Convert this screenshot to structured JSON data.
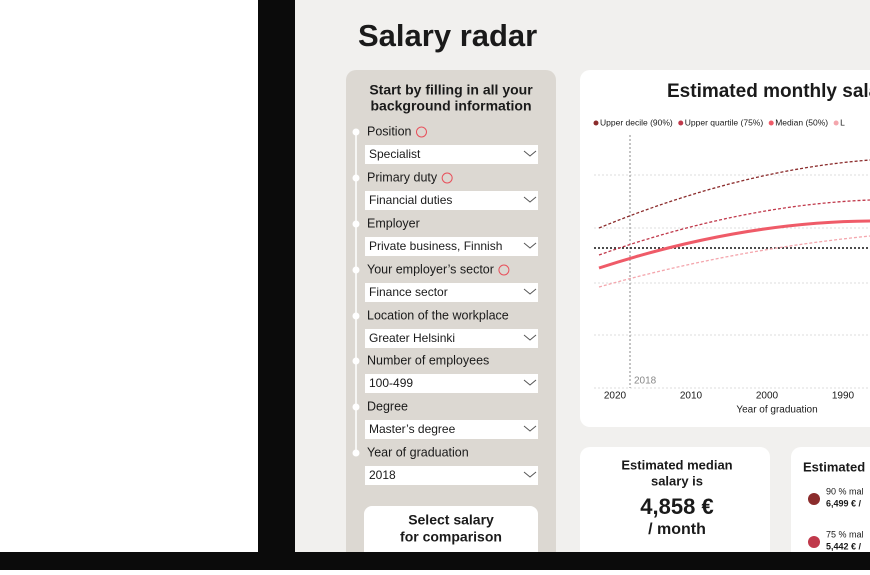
{
  "header": {
    "title": "Salary radar"
  },
  "form": {
    "heading": [
      "Start by filling in all your",
      "background information"
    ],
    "fields": [
      {
        "label": "Position",
        "value": "Specialist"
      },
      {
        "label": "Primary duty",
        "value": "Financial duties"
      },
      {
        "label": "Employer",
        "value": "Private business, Finnish"
      },
      {
        "label": "Your employer’s sector",
        "value": "Finance sector"
      },
      {
        "label": "Location of the workplace",
        "value": "Greater Helsinki"
      },
      {
        "label": "Number of employees",
        "value": "100-499"
      },
      {
        "label": "Degree",
        "value": "Master’s degree"
      },
      {
        "label": "Year of graduation",
        "value": "2018"
      }
    ],
    "button": [
      "Select salary",
      "for comparison"
    ]
  },
  "chart": {
    "title": "Estimated monthly sala",
    "legend": [
      "Upper decile (90%)",
      "Upper quartile (75%)",
      "Median (50%)",
      "L"
    ],
    "xticks": [
      "2020",
      "2010",
      "2000",
      "1990"
    ],
    "marker_label": "2018",
    "x_label": "Year of graduation"
  },
  "median_card": {
    "lines": [
      "Estimated median",
      "salary is"
    ],
    "amount": "4,858 €",
    "unit": "/ month"
  },
  "range_card": {
    "title": "Estimated",
    "items": [
      {
        "label": "90 % mal",
        "amount": "6,499 € /"
      },
      {
        "label": "75 % mal",
        "amount": "5,442 € /"
      }
    ]
  }
}
